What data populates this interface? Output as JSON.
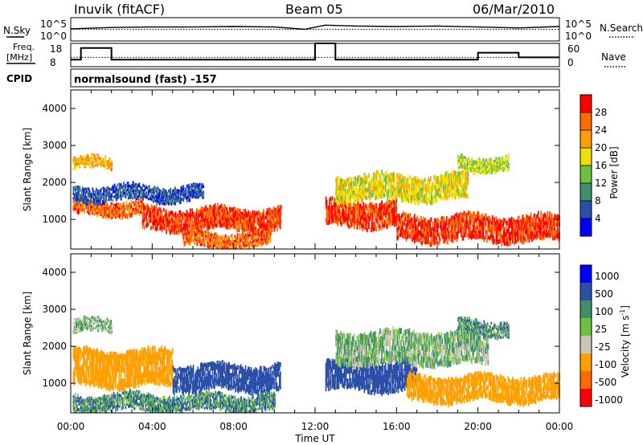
{
  "header": {
    "station": "Inuvik (fitACF)",
    "beam": "Beam 05",
    "date": "06/Mar/2010"
  },
  "side_labels": {
    "nsky": "N.Sky",
    "nsearch": "N.Search",
    "freq_line1": "Freq.",
    "freq_line2": "[MHz]",
    "nave": "Nave",
    "cpid": "CPID"
  },
  "cpid_text": "normalsound (fast) -157",
  "nsky_ticks": [
    "10^5",
    "10^0"
  ],
  "freq_ticks_left": [
    "18",
    "8"
  ],
  "nave_ticks_right": [
    "60",
    "0"
  ],
  "colors": {
    "power_scale": [
      "#0000ff",
      "#2a4fa8",
      "#3f8f6a",
      "#6fc040",
      "#f0e000",
      "#ffa000",
      "#ff6a00",
      "#ff0000"
    ],
    "velocity_scale": [
      "#ff0000",
      "#ff6a00",
      "#ffa000",
      "#c8c8b4",
      "#6fc040",
      "#3f8f6a",
      "#2a4fa8",
      "#0000ff"
    ]
  },
  "chart_data": [
    {
      "type": "line",
      "name": "noise-panel",
      "x": [
        0,
        2,
        4,
        6,
        8,
        10,
        11.5,
        12.5,
        14,
        16,
        18,
        20,
        22,
        24
      ],
      "series": [
        {
          "name": "N.Sky",
          "values": [
            2.6,
            2.9,
            3.0,
            3.0,
            3.1,
            3.0,
            2.5,
            3.4,
            3.2,
            3.1,
            3.2,
            3.0,
            2.8,
            3.1
          ]
        },
        {
          "name": "N.Search",
          "values": [
            2.5,
            2.5,
            2.5,
            2.5,
            2.5,
            2.5,
            2.5,
            2.5,
            2.5,
            2.5,
            2.5,
            2.5,
            2.5,
            2.5
          ]
        }
      ],
      "yticks": [
        "10^5",
        "10^0"
      ]
    },
    {
      "type": "line",
      "name": "frequency-panel",
      "x": [
        0,
        0.5,
        1.7,
        2.0,
        9.5,
        10.0,
        11.5,
        12.0,
        12.5,
        13.0,
        19.8,
        20.0,
        21.5,
        22.0,
        24
      ],
      "series": [
        {
          "name": "Freq",
          "values": [
            11,
            16,
            16,
            11,
            11,
            11,
            11,
            18,
            18,
            11,
            11,
            14,
            14,
            12,
            12
          ]
        },
        {
          "name": "Nave",
          "values": [
            24,
            24,
            24,
            24,
            24,
            24,
            24,
            24,
            24,
            24,
            24,
            24,
            24,
            24,
            24
          ]
        }
      ],
      "ylim_left": [
        8,
        18
      ],
      "ylim_right": [
        0,
        60
      ]
    },
    {
      "type": "heatmap",
      "name": "power-panel",
      "xlabel": "",
      "ylabel": "Slant Range [km]",
      "xlim": [
        0,
        24
      ],
      "ylim": [
        200,
        4500
      ],
      "xticks": [
        "00:00",
        "04:00",
        "08:00",
        "12:00",
        "16:00",
        "20:00",
        "00:00"
      ],
      "yticks": [
        1000,
        2000,
        3000,
        4000
      ],
      "colorbar_label": "Power [dB]",
      "colorbar_ticks": [
        4,
        8,
        12,
        16,
        20,
        24,
        28
      ],
      "bands": [
        {
          "t0": 0.1,
          "t1": 2.0,
          "r0": 2350,
          "r1": 2650,
          "value": 22
        },
        {
          "t0": 0.1,
          "t1": 3.5,
          "r0": 1100,
          "r1": 1500,
          "value": 26
        },
        {
          "t0": 3.5,
          "t1": 10.3,
          "r0": 700,
          "r1": 1300,
          "value": 28
        },
        {
          "t0": 0.1,
          "t1": 6.5,
          "r0": 1500,
          "r1": 1900,
          "value": 6
        },
        {
          "t0": 5.5,
          "t1": 9.8,
          "r0": 250,
          "r1": 650,
          "value": 26
        },
        {
          "t0": 12.5,
          "t1": 16.0,
          "r0": 800,
          "r1": 1500,
          "value": 28
        },
        {
          "t0": 16.0,
          "t1": 24.0,
          "r0": 400,
          "r1": 1100,
          "value": 28
        },
        {
          "t0": 13.0,
          "t1": 19.5,
          "r0": 1500,
          "r1": 2200,
          "value": 18
        },
        {
          "t0": 19.0,
          "t1": 21.5,
          "r0": 2300,
          "r1": 2700,
          "value": 16
        }
      ]
    },
    {
      "type": "heatmap",
      "name": "velocity-panel",
      "xlabel": "Time UT",
      "ylabel": "Slant Range [km]",
      "xlim": [
        0,
        24
      ],
      "ylim": [
        200,
        4500
      ],
      "xticks": [
        "00:00",
        "04:00",
        "08:00",
        "12:00",
        "16:00",
        "20:00",
        "00:00"
      ],
      "yticks": [
        1000,
        2000,
        3000,
        4000
      ],
      "colorbar_label": "Velocity [m s",
      "colorbar_label_exp": "-1",
      "colorbar_label_end": "]",
      "colorbar_ticks": [
        "1000",
        "500",
        "100",
        "25",
        "-25",
        "-100",
        "-500",
        "-1000"
      ],
      "bands": [
        {
          "t0": 0.1,
          "t1": 2.0,
          "r0": 2350,
          "r1": 2700,
          "value": 0
        },
        {
          "t0": 0.1,
          "t1": 5.0,
          "r0": 900,
          "r1": 1900,
          "value": -200
        },
        {
          "t0": 5.0,
          "t1": 10.3,
          "r0": 800,
          "r1": 1500,
          "value": 300
        },
        {
          "t0": 0.1,
          "t1": 10.0,
          "r0": 250,
          "r1": 700,
          "value": 60
        },
        {
          "t0": 12.5,
          "t1": 17.0,
          "r0": 800,
          "r1": 1600,
          "value": 300
        },
        {
          "t0": 16.5,
          "t1": 24.0,
          "r0": 500,
          "r1": 1200,
          "value": -200
        },
        {
          "t0": 13.0,
          "t1": 20.5,
          "r0": 1500,
          "r1": 2400,
          "value": 0
        },
        {
          "t0": 19.0,
          "t1": 21.5,
          "r0": 2300,
          "r1": 2700,
          "value": 40
        }
      ]
    }
  ]
}
